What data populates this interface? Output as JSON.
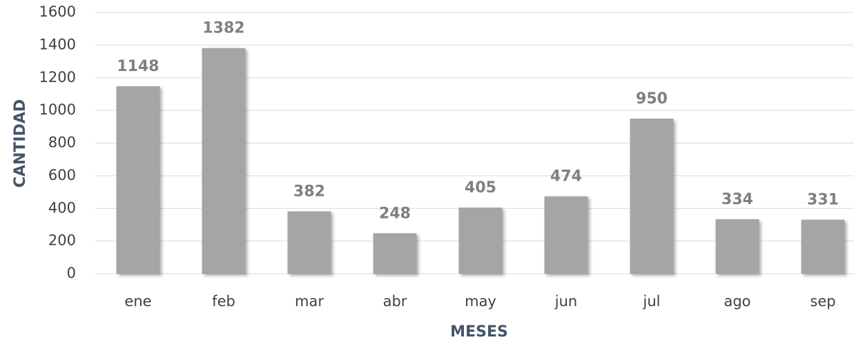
{
  "chart_data": {
    "type": "bar",
    "categories": [
      "ene",
      "feb",
      "mar",
      "abr",
      "may",
      "jun",
      "jul",
      "ago",
      "sep"
    ],
    "values": [
      1148,
      1382,
      382,
      248,
      405,
      474,
      950,
      334,
      331
    ],
    "color": "#a5a5a5",
    "xlabel": "MESES",
    "ylabel": "CANTIDAD",
    "ylim": [
      0,
      1600
    ],
    "yticks": [
      0,
      200,
      400,
      600,
      800,
      1000,
      1200,
      1400,
      1600
    ],
    "grid": true
  }
}
